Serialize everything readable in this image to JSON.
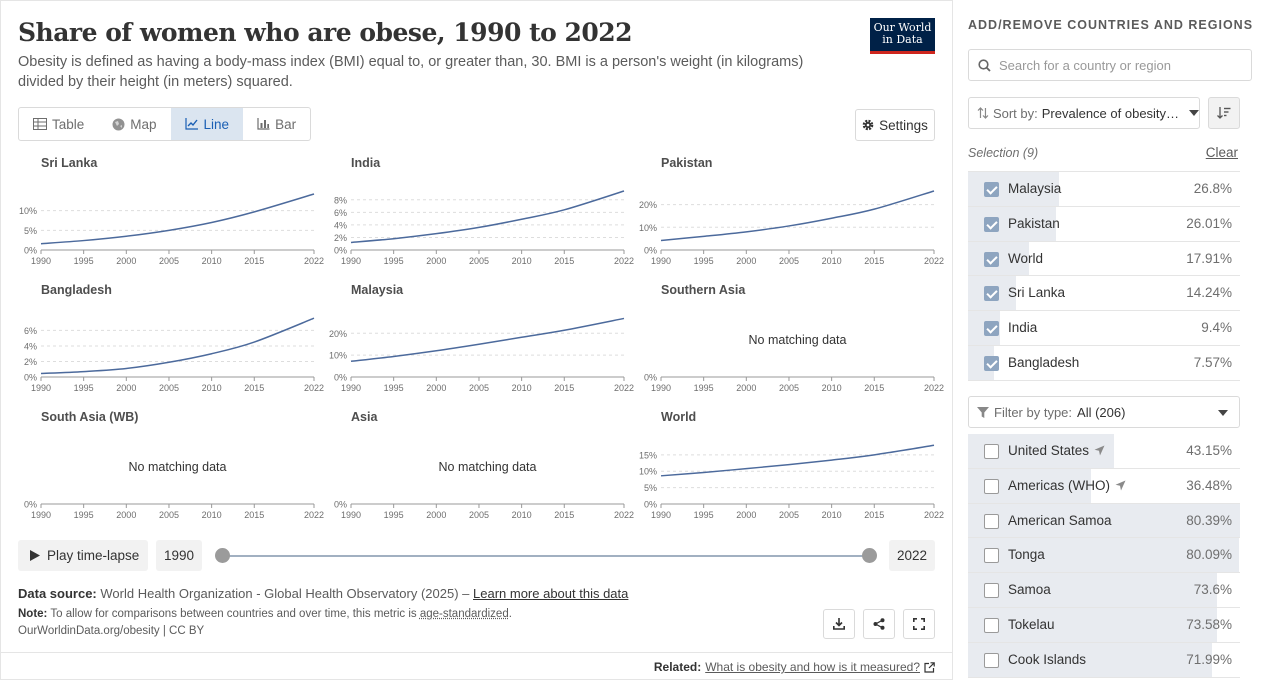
{
  "title": "Share of women who are obese, 1990 to 2022",
  "subtitle": "Obesity is defined as having a body-mass index (BMI) equal to, or greater than, 30. BMI is a person's weight (in kilograms) divided by their height (in meters) squared.",
  "logo": {
    "line1": "Our World",
    "line2": "in Data"
  },
  "tabs": {
    "table": "Table",
    "map": "Map",
    "line": "Line",
    "bar": "Bar",
    "active": "line"
  },
  "settings_label": "Settings",
  "colors": {
    "line": "#4c6a9c",
    "accent": "#1a5fb4",
    "logo_bg": "#002147",
    "logo_bar": "#ce261e"
  },
  "no_data_label": "No matching data",
  "chart_data": [
    {
      "type": "line",
      "title": "Sri Lanka",
      "x": [
        1990,
        1995,
        2000,
        2005,
        2010,
        2015,
        2022
      ],
      "values": [
        1.6,
        2.4,
        3.5,
        5.0,
        7.0,
        9.7,
        14.24
      ],
      "yticks": [
        "0%",
        "5%",
        "10%"
      ],
      "ylim": [
        0,
        15
      ],
      "xticks": [
        "1990",
        "1995",
        "2000",
        "2005",
        "2010",
        "2015",
        "2022"
      ],
      "has_data": true
    },
    {
      "type": "line",
      "title": "India",
      "x": [
        1990,
        1995,
        2000,
        2005,
        2010,
        2015,
        2022
      ],
      "values": [
        1.2,
        1.8,
        2.6,
        3.6,
        4.9,
        6.4,
        9.4
      ],
      "yticks": [
        "0%",
        "2%",
        "4%",
        "6%",
        "8%"
      ],
      "ylim": [
        0,
        9.4
      ],
      "xticks": [
        "1990",
        "1995",
        "2000",
        "2005",
        "2010",
        "2015",
        "2022"
      ],
      "has_data": true
    },
    {
      "type": "line",
      "title": "Pakistan",
      "x": [
        1990,
        1995,
        2000,
        2005,
        2010,
        2015,
        2022
      ],
      "values": [
        4.2,
        6.0,
        8.0,
        10.6,
        14.0,
        18.0,
        26.01
      ],
      "yticks": [
        "0%",
        "10%",
        "20%"
      ],
      "ylim": [
        0,
        26
      ],
      "xticks": [
        "1990",
        "1995",
        "2000",
        "2005",
        "2010",
        "2015",
        "2022"
      ],
      "has_data": true
    },
    {
      "type": "line",
      "title": "Bangladesh",
      "x": [
        1990,
        1995,
        2000,
        2005,
        2010,
        2015,
        2022
      ],
      "values": [
        0.45,
        0.7,
        1.1,
        1.9,
        3.0,
        4.5,
        7.57
      ],
      "yticks": [
        "0%",
        "2%",
        "4%",
        "6%"
      ],
      "ylim": [
        0,
        7.6
      ],
      "xticks": [
        "1990",
        "1995",
        "2000",
        "2005",
        "2010",
        "2015",
        "2022"
      ],
      "has_data": true
    },
    {
      "type": "line",
      "title": "Malaysia",
      "x": [
        1990,
        1995,
        2000,
        2005,
        2010,
        2015,
        2022
      ],
      "values": [
        7.2,
        9.4,
        12.0,
        15.0,
        18.2,
        21.4,
        26.8
      ],
      "yticks": [
        "0%",
        "10%",
        "20%"
      ],
      "ylim": [
        0,
        27
      ],
      "xticks": [
        "1990",
        "1995",
        "2000",
        "2005",
        "2010",
        "2015",
        "2022"
      ],
      "has_data": true
    },
    {
      "type": "line",
      "title": "Southern Asia",
      "x": [],
      "values": [],
      "yticks": [
        "0%"
      ],
      "ylim": [
        0,
        1
      ],
      "xticks": [
        "1990",
        "1995",
        "2000",
        "2005",
        "2010",
        "2015",
        "2022"
      ],
      "has_data": false
    },
    {
      "type": "line",
      "title": "South Asia (WB)",
      "x": [],
      "values": [],
      "yticks": [
        "0%"
      ],
      "ylim": [
        0,
        1
      ],
      "xticks": [
        "1990",
        "1995",
        "2000",
        "2005",
        "2010",
        "2015",
        "2022"
      ],
      "has_data": false
    },
    {
      "type": "line",
      "title": "Asia",
      "x": [],
      "values": [],
      "yticks": [
        "0%"
      ],
      "ylim": [
        0,
        1
      ],
      "xticks": [
        "1990",
        "1995",
        "2000",
        "2005",
        "2010",
        "2015",
        "2022"
      ],
      "has_data": false
    },
    {
      "type": "line",
      "title": "World",
      "x": [
        1990,
        1995,
        2000,
        2005,
        2010,
        2015,
        2022
      ],
      "values": [
        8.6,
        9.6,
        10.8,
        12.0,
        13.4,
        15.0,
        17.91
      ],
      "yticks": [
        "0%",
        "5%",
        "10%",
        "15%"
      ],
      "ylim": [
        0,
        18
      ],
      "xticks": [
        "1990",
        "1995",
        "2000",
        "2005",
        "2010",
        "2015",
        "2022"
      ],
      "has_data": true
    }
  ],
  "timeline": {
    "play_label": "Play time-lapse",
    "start_year": "1990",
    "end_year": "2022"
  },
  "footer": {
    "source_label": "Data source:",
    "source_text": "World Health Organization - Global Health Observatory (2025) –",
    "source_link": "Learn more about this data",
    "note_label": "Note:",
    "note_text": "To allow for comparisons between countries and over time, this metric is",
    "note_link": "age-standardized",
    "note_end": ".",
    "credit": "OurWorldinData.org/obesity | CC BY",
    "related_label": "Related:",
    "related_link": "What is obesity and how is it measured?"
  },
  "sidebar": {
    "title": "ADD/REMOVE COUNTRIES AND REGIONS",
    "search_placeholder": "Search for a country or region",
    "sort_label": "Sort by:",
    "sort_value": "Prevalence of obesity…",
    "selection_label": "Selection (9)",
    "clear_label": "Clear",
    "selected": [
      {
        "name": "Malaysia",
        "value": "26.8%",
        "fraction": 0.333
      },
      {
        "name": "Pakistan",
        "value": "26.01%",
        "fraction": 0.324
      },
      {
        "name": "World",
        "value": "17.91%",
        "fraction": 0.223
      },
      {
        "name": "Sri Lanka",
        "value": "14.24%",
        "fraction": 0.177
      },
      {
        "name": "India",
        "value": "9.4%",
        "fraction": 0.117
      },
      {
        "name": "Bangladesh",
        "value": "7.57%",
        "fraction": 0.094
      }
    ],
    "filter_label": "Filter by type:",
    "filter_value": "All (206)",
    "available": [
      {
        "name": "United States",
        "value": "43.15%",
        "fraction": 0.537,
        "arrow": true
      },
      {
        "name": "Americas (WHO)",
        "value": "36.48%",
        "fraction": 0.454,
        "arrow": true
      },
      {
        "name": "American Samoa",
        "value": "80.39%",
        "fraction": 1.0,
        "arrow": false
      },
      {
        "name": "Tonga",
        "value": "80.09%",
        "fraction": 0.996,
        "arrow": false
      },
      {
        "name": "Samoa",
        "value": "73.6%",
        "fraction": 0.916,
        "arrow": false
      },
      {
        "name": "Tokelau",
        "value": "73.58%",
        "fraction": 0.915,
        "arrow": false
      },
      {
        "name": "Cook Islands",
        "value": "71.99%",
        "fraction": 0.896,
        "arrow": false
      }
    ]
  }
}
